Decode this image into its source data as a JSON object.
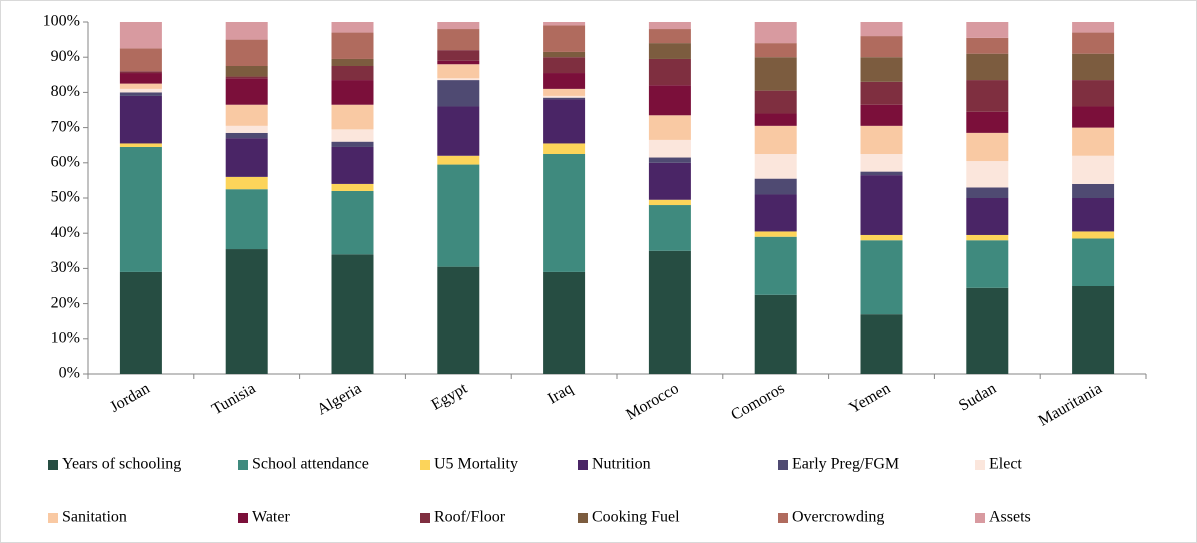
{
  "chart_data": {
    "type": "stacked_bar",
    "categories": [
      "Jordan",
      "Tunisia",
      "Algeria",
      "Egypt",
      "Iraq",
      "Morocco",
      "Comoros",
      "Yemen",
      "Sudan",
      "Mauritania"
    ],
    "ylim": [
      0,
      100
    ],
    "yticks": [
      {
        "value": 0,
        "label": "0%"
      },
      {
        "value": 10,
        "label": "10%"
      },
      {
        "value": 20,
        "label": "20%"
      },
      {
        "value": 30,
        "label": "30%"
      },
      {
        "value": 40,
        "label": "40%"
      },
      {
        "value": 50,
        "label": "50%"
      },
      {
        "value": 60,
        "label": "60%"
      },
      {
        "value": 70,
        "label": "70%"
      },
      {
        "value": 80,
        "label": "80%"
      },
      {
        "value": 90,
        "label": "90%"
      },
      {
        "value": 100,
        "label": "100%"
      }
    ],
    "grid": false,
    "legend": "bottom",
    "series": [
      {
        "name": "Years of schooling",
        "color": "#264d42",
        "values": [
          29,
          35.5,
          34,
          30.5,
          29,
          35,
          22.5,
          17,
          24.5,
          25
        ]
      },
      {
        "name": "School attendance",
        "color": "#3f8a7e",
        "values": [
          35.5,
          17,
          18,
          29,
          33.5,
          13,
          16.5,
          21,
          13.5,
          13.5
        ]
      },
      {
        "name": "U5 Mortality",
        "color": "#fcd45a",
        "values": [
          1,
          3.5,
          2,
          2.5,
          3,
          1.5,
          1.5,
          1.5,
          1.5,
          2
        ]
      },
      {
        "name": "Nutrition",
        "color": "#4a2566",
        "values": [
          13.5,
          11,
          10.5,
          14,
          12.5,
          10.5,
          10.5,
          17,
          10.5,
          9.5
        ]
      },
      {
        "name": "Early Preg/FGM",
        "color": "#4f4a72",
        "values": [
          1,
          1.5,
          1.5,
          7.5,
          0.5,
          1.5,
          4.5,
          1,
          3,
          4
        ]
      },
      {
        "name": "Elect",
        "color": "#fbe6dc",
        "values": [
          1,
          2,
          3.5,
          0.5,
          0.5,
          5,
          7,
          5,
          7.5,
          8
        ]
      },
      {
        "name": "Sanitation",
        "color": "#f9c9a3",
        "values": [
          1.5,
          6,
          7,
          4,
          2,
          7,
          8,
          8,
          8,
          8
        ]
      },
      {
        "name": "Water",
        "color": "#7b0f3a",
        "values": [
          3,
          7.5,
          7,
          1,
          4.5,
          8.5,
          3.5,
          6,
          6,
          6
        ]
      },
      {
        "name": "Roof/Floor",
        "color": "#7f2f40",
        "values": [
          0.5,
          0.5,
          4,
          3,
          4.5,
          7.5,
          6.5,
          6.5,
          9,
          7.5
        ]
      },
      {
        "name": "Cooking Fuel",
        "color": "#7c5c3f",
        "values": [
          0,
          3,
          2,
          0,
          1.5,
          4.5,
          9.5,
          7,
          7.5,
          7.5
        ]
      },
      {
        "name": "Overcrowding",
        "color": "#b06b5e",
        "values": [
          6.5,
          7.5,
          7.5,
          6,
          7.5,
          4,
          4,
          6,
          4.5,
          6
        ]
      },
      {
        "name": "Assets",
        "color": "#d89aa0",
        "values": [
          7.5,
          5,
          3,
          2,
          1,
          2,
          6,
          4,
          4.5,
          3
        ]
      }
    ]
  }
}
